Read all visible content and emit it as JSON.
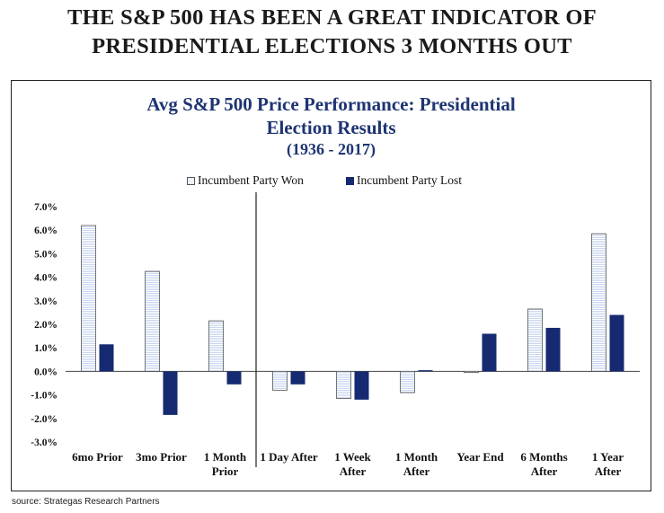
{
  "headline": {
    "line1": "THE S&P 500 HAS BEEN A GREAT INDICATOR OF",
    "line2": "PRESIDENTIAL ELECTIONS 3 MONTHS OUT"
  },
  "source": "source: Strategas Research Partners",
  "colors": {
    "won_fill": "#dde6f5",
    "won_edge": "#555555",
    "lost_fill": "#152a70",
    "title": "#1e3473"
  },
  "chart_data": {
    "type": "bar",
    "title_lines": [
      "Avg S&P 500 Price Performance: Presidential",
      "Election Results",
      "(1936 - 2017)"
    ],
    "categories": [
      [
        "6mo Prior"
      ],
      [
        "3mo Prior"
      ],
      [
        "1 Month",
        "Prior"
      ],
      [
        "1 Day After"
      ],
      [
        "1 Week",
        "After"
      ],
      [
        "1 Month",
        "After"
      ],
      [
        "Year End"
      ],
      [
        "6 Months",
        "After"
      ],
      [
        "1 Year",
        "After"
      ]
    ],
    "series": [
      {
        "name": "Incumbent Party Won",
        "values": [
          6.2,
          4.25,
          2.15,
          -0.8,
          -1.15,
          -0.9,
          -0.05,
          2.65,
          5.85
        ]
      },
      {
        "name": "Incumbent Party Lost",
        "values": [
          1.15,
          -1.85,
          -0.55,
          -0.55,
          -1.2,
          0.05,
          1.6,
          1.85,
          2.4
        ]
      }
    ],
    "yticks": [
      "7.0%",
      "6.0%",
      "5.0%",
      "4.0%",
      "3.0%",
      "2.0%",
      "1.0%",
      "0.0%",
      "-1.0%",
      "-2.0%",
      "-3.0%"
    ],
    "ylim": [
      -3,
      7
    ],
    "divider_after_index": 2,
    "xlabel": "",
    "ylabel": ""
  }
}
